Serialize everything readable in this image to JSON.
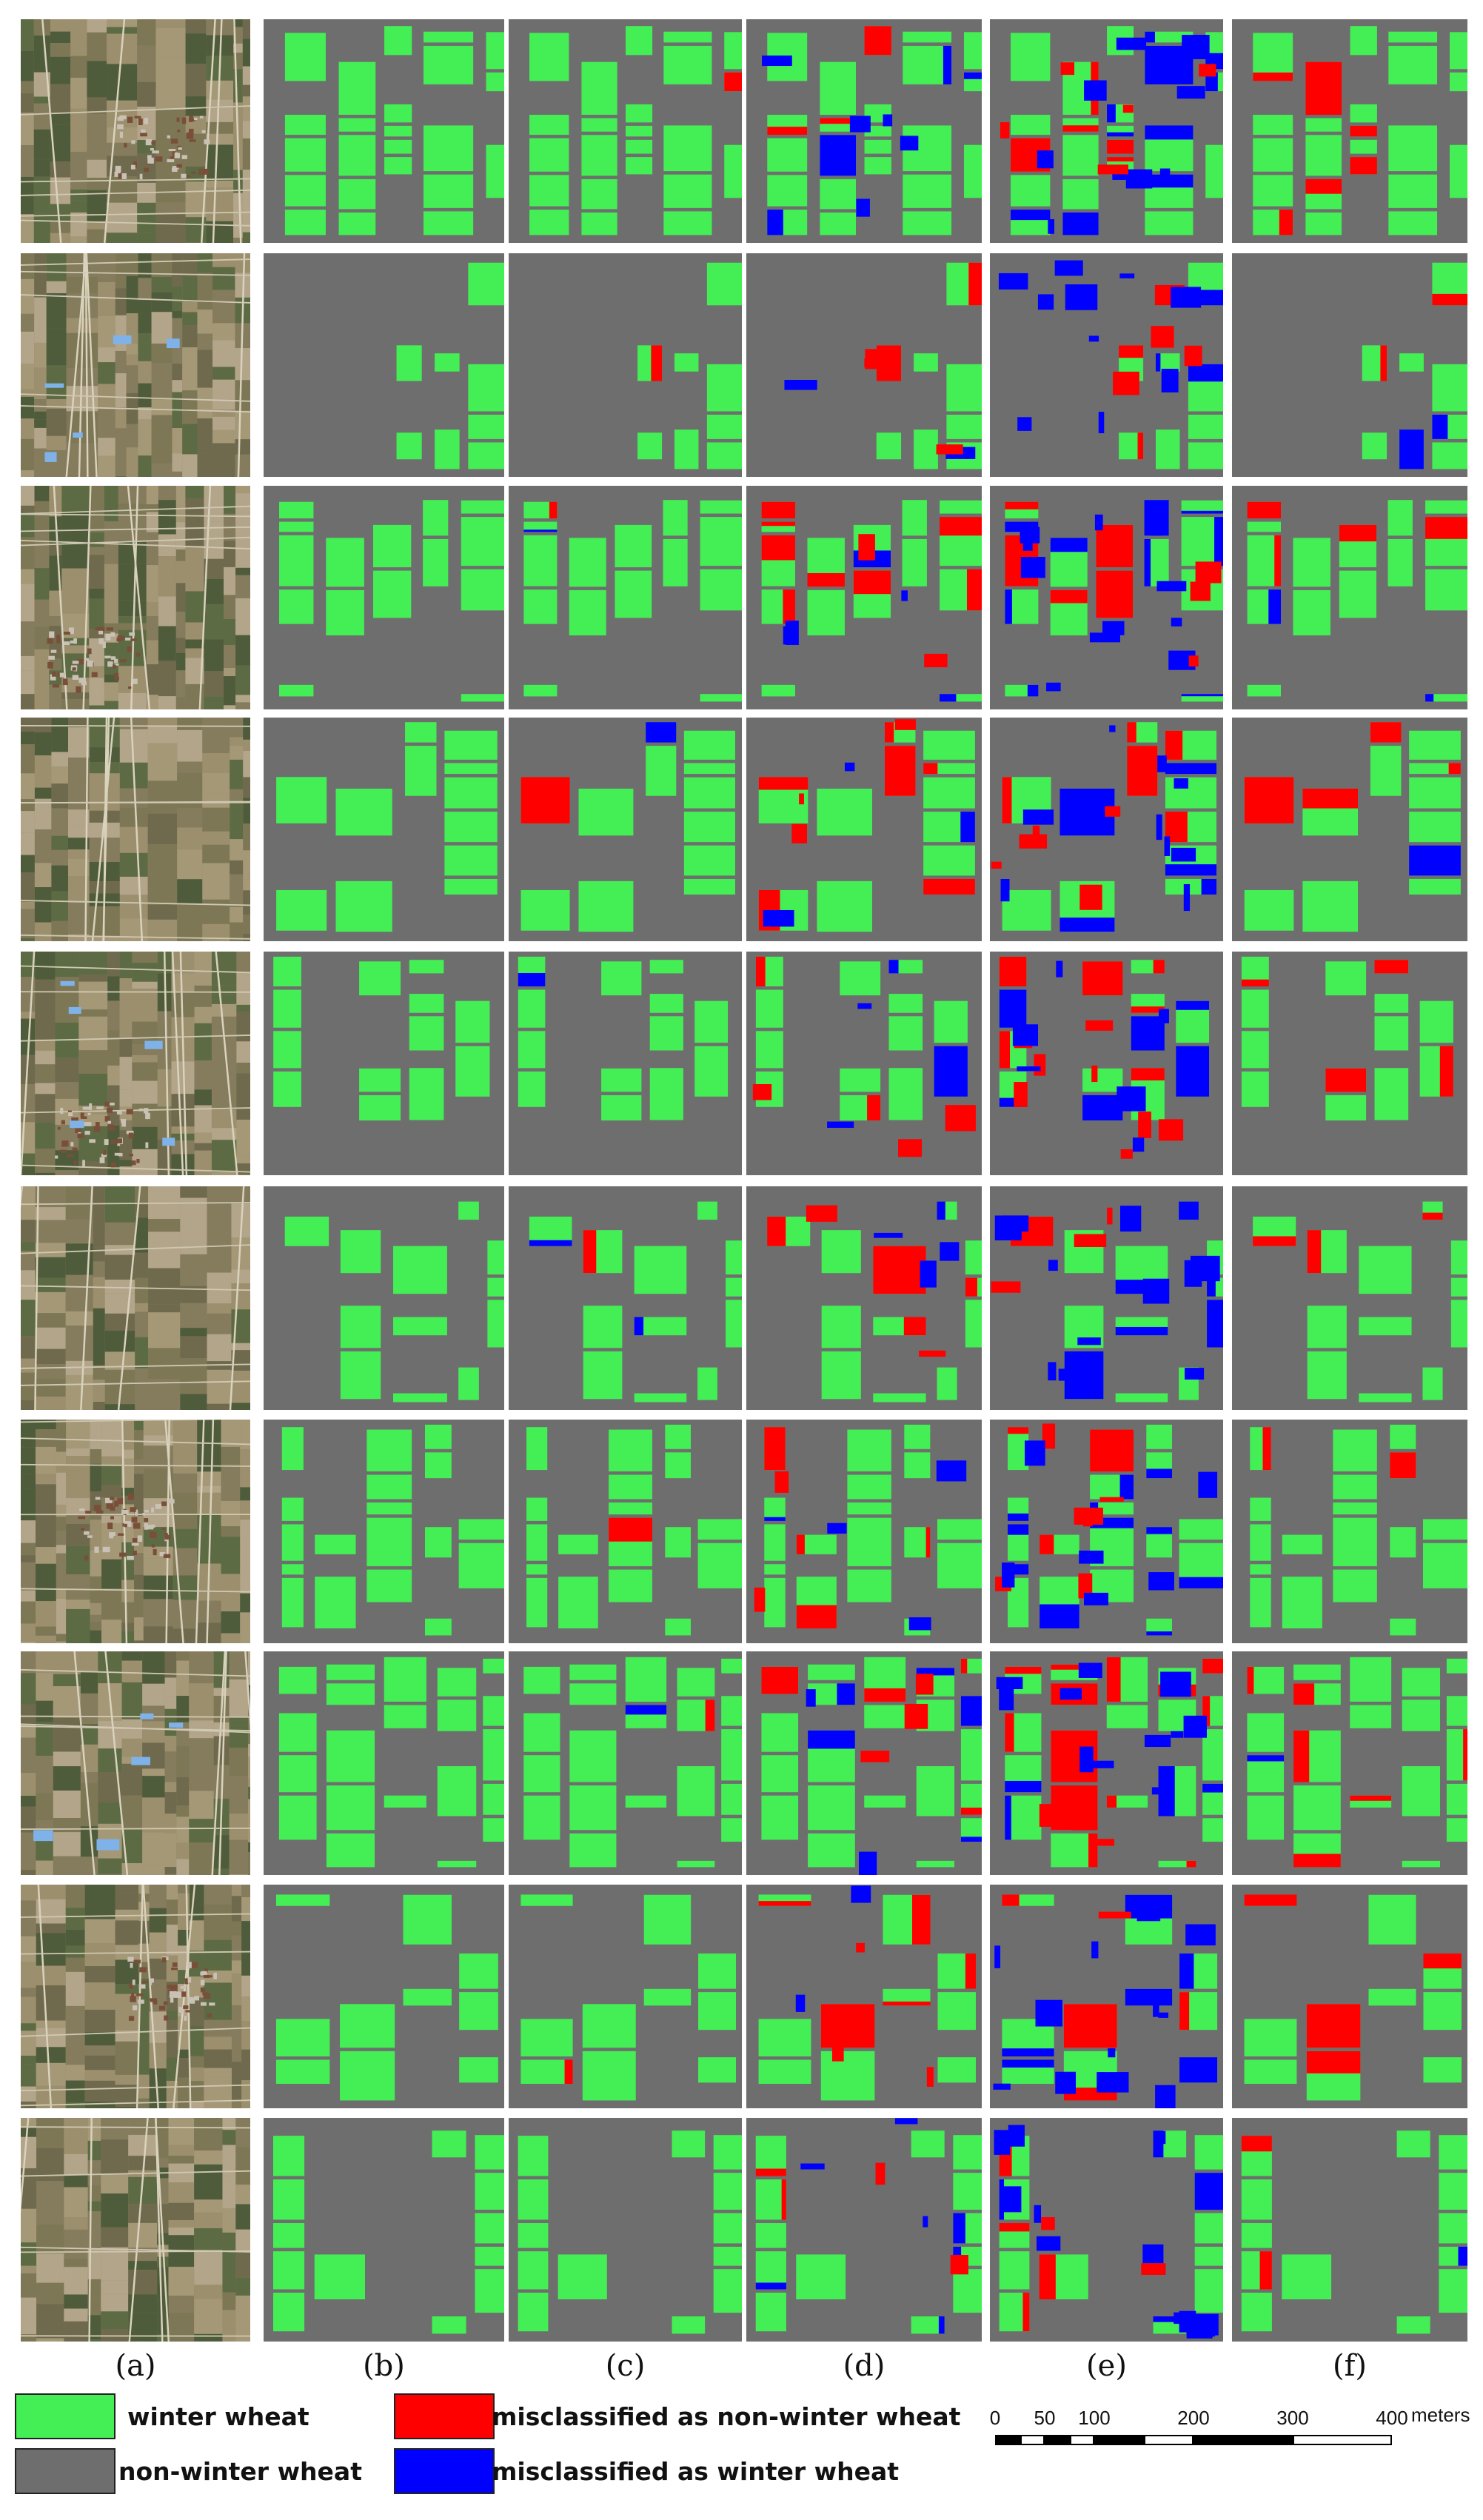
{
  "columns": [
    {
      "id": "a",
      "label": "(a)",
      "kind": "satellite image"
    },
    {
      "id": "b",
      "label": "(b)",
      "kind": "ground truth"
    },
    {
      "id": "c",
      "label": "(c)",
      "kind": "classification"
    },
    {
      "id": "d",
      "label": "(d)",
      "kind": "classification"
    },
    {
      "id": "e",
      "label": "(e)",
      "kind": "classification"
    },
    {
      "id": "f",
      "label": "(f)",
      "kind": "classification"
    }
  ],
  "row_count": 10,
  "legend": [
    {
      "label": "winter wheat",
      "color": "#44ee55"
    },
    {
      "label": "non-winter wheat",
      "color": "#6e6e6e"
    },
    {
      "label": "misclassified as non-winter wheat",
      "color": "#ff0000"
    },
    {
      "label": "misclassified as winter wheat",
      "color": "#0000ff"
    }
  ],
  "scale_bar": {
    "ticks": [
      "0",
      "50",
      "100",
      "200",
      "300",
      "400"
    ],
    "unit": "meters"
  },
  "colors": {
    "winter_wheat": "#44ee55",
    "non_winter_wheat": "#6e6e6e",
    "miss_non_winter": "#ff0000",
    "miss_winter": "#0000ff"
  }
}
